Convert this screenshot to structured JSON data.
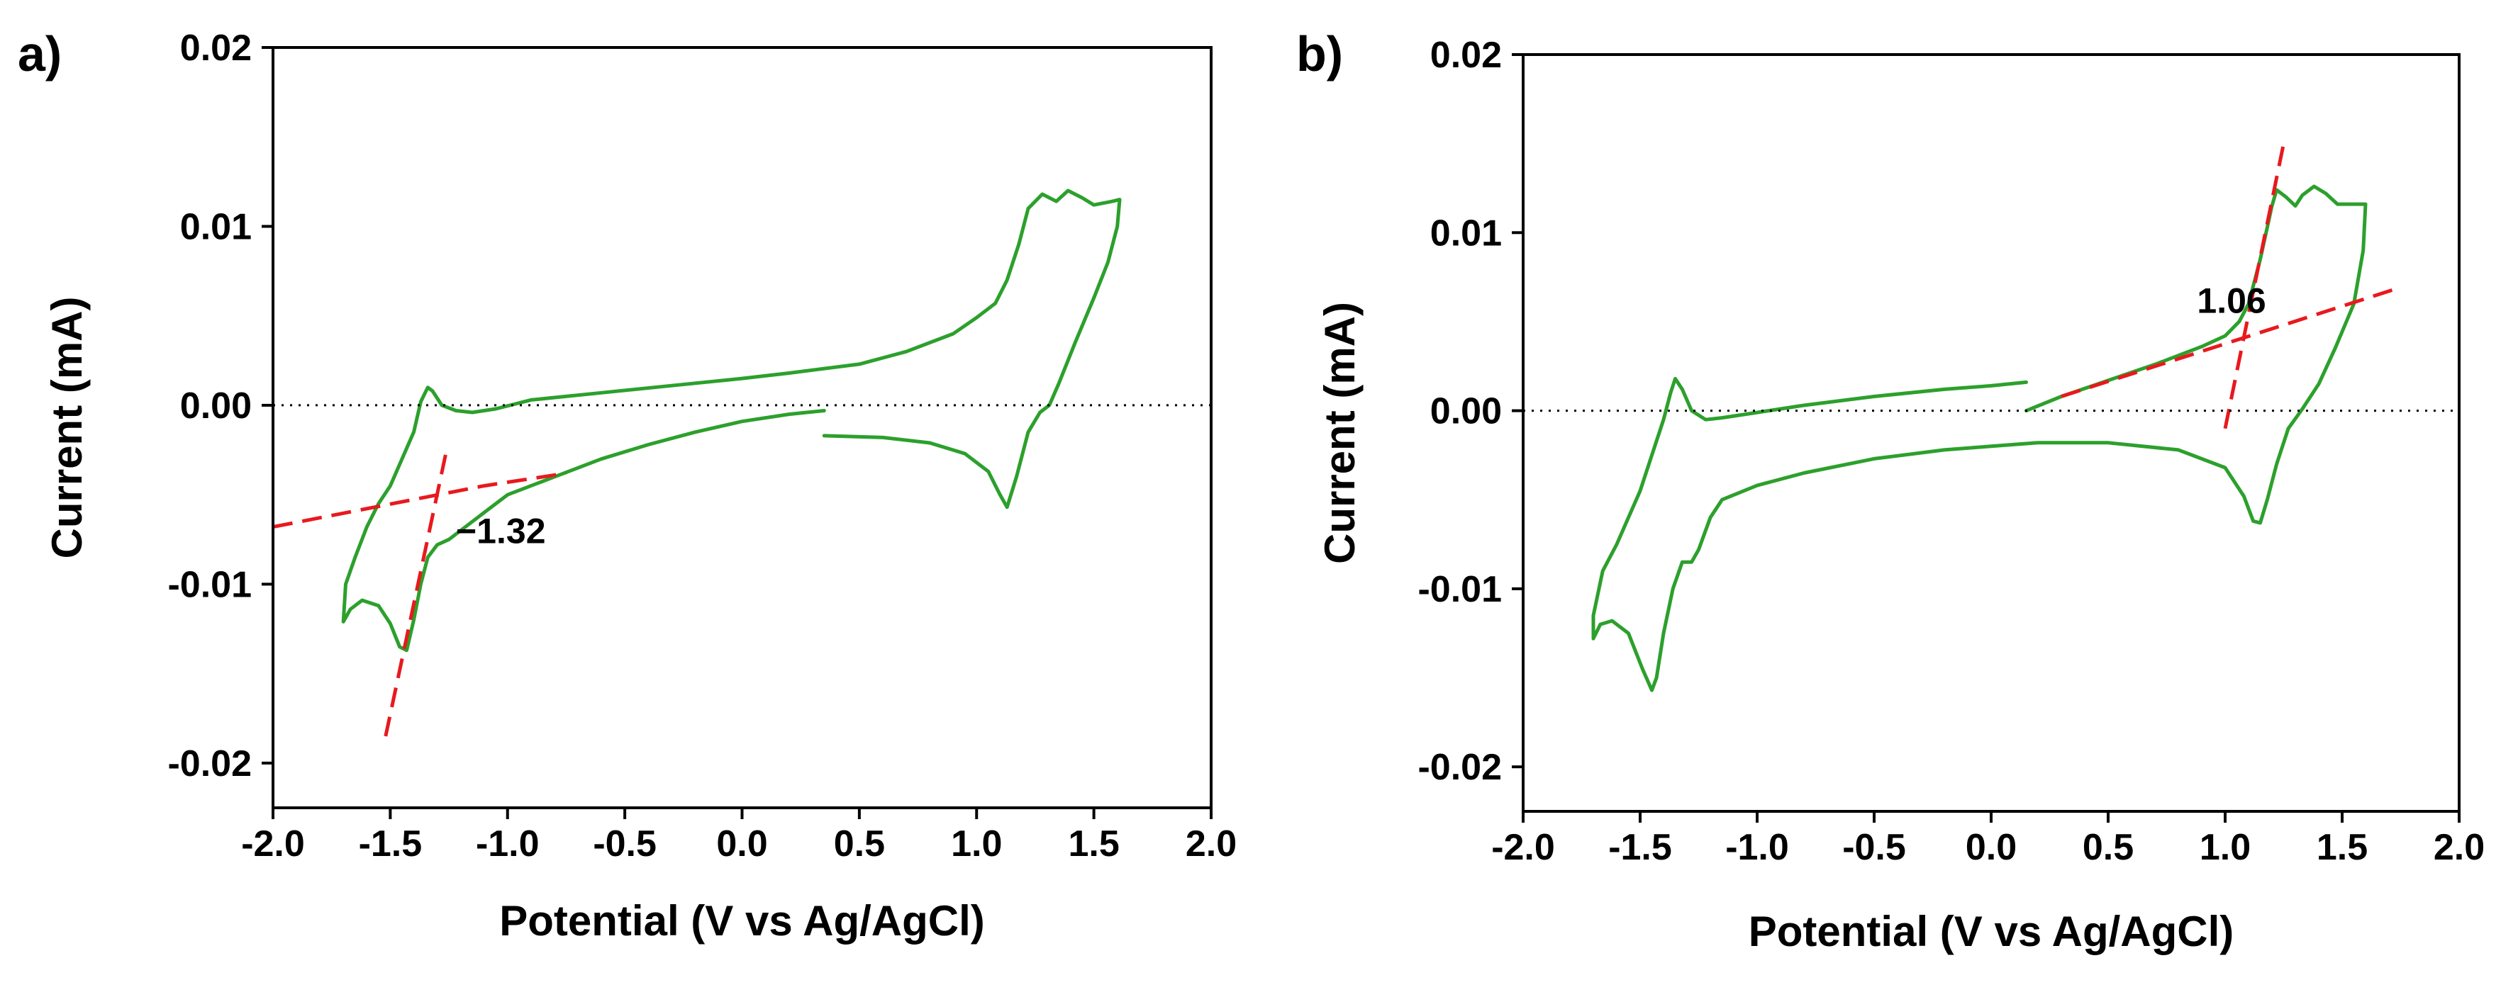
{
  "chart_data": [
    {
      "type": "line",
      "panel": "a)",
      "xlabel": "Potential (V vs Ag/AgCl)",
      "ylabel": "Current (mA)",
      "xlim": [
        -2.0,
        2.0
      ],
      "ylim": [
        -0.0225,
        0.02
      ],
      "xticks": [
        "-2.0",
        "-1.5",
        "-1.0",
        "-0.5",
        "0.0",
        "0.5",
        "1.0",
        "1.5",
        "2.0"
      ],
      "yticks": [
        "0.02",
        "0.01",
        "0.00",
        "-0.01",
        "-0.02"
      ],
      "ytick_values": [
        0.02,
        0.01,
        0.0,
        -0.01,
        -0.02
      ],
      "colors": {
        "curve": "#2ca02c",
        "tangent": "#e8191e",
        "zero_line": "#000000"
      },
      "annotation": {
        "text": "−1.32",
        "x": -1.22,
        "y": -0.0077
      },
      "series": [
        {
          "name": "CV",
          "style": "solid",
          "points": [
            [
              0.35,
              -0.0017
            ],
            [
              0.6,
              -0.0018
            ],
            [
              0.8,
              -0.0021
            ],
            [
              0.95,
              -0.0027
            ],
            [
              1.05,
              -0.0037
            ],
            [
              1.1,
              -0.005
            ],
            [
              1.13,
              -0.0057
            ],
            [
              1.17,
              -0.004
            ],
            [
              1.22,
              -0.0015
            ],
            [
              1.27,
              -0.0004
            ],
            [
              1.31,
              0.0
            ],
            [
              1.35,
              0.0012
            ],
            [
              1.42,
              0.0035
            ],
            [
              1.5,
              0.006
            ],
            [
              1.56,
              0.008
            ],
            [
              1.6,
              0.01
            ],
            [
              1.61,
              0.0115
            ],
            [
              1.58,
              0.0114
            ],
            [
              1.5,
              0.0112
            ],
            [
              1.45,
              0.0116
            ],
            [
              1.39,
              0.012
            ],
            [
              1.34,
              0.0114
            ],
            [
              1.28,
              0.0118
            ],
            [
              1.22,
              0.011
            ],
            [
              1.18,
              0.009
            ],
            [
              1.13,
              0.007
            ],
            [
              1.08,
              0.0057
            ],
            [
              1.0,
              0.0049
            ],
            [
              0.9,
              0.004
            ],
            [
              0.7,
              0.003
            ],
            [
              0.5,
              0.0023
            ],
            [
              0.2,
              0.0018
            ],
            [
              0.0,
              0.0015
            ],
            [
              -0.3,
              0.0011
            ],
            [
              -0.6,
              0.0007
            ],
            [
              -0.9,
              0.0003
            ],
            [
              -1.05,
              -0.0002
            ],
            [
              -1.15,
              -0.0004
            ],
            [
              -1.22,
              -0.0003
            ],
            [
              -1.28,
              0.0
            ],
            [
              -1.32,
              0.0008
            ],
            [
              -1.34,
              0.001
            ],
            [
              -1.37,
              0.0002
            ],
            [
              -1.4,
              -0.0015
            ],
            [
              -1.45,
              -0.003
            ],
            [
              -1.5,
              -0.0045
            ],
            [
              -1.55,
              -0.0055
            ],
            [
              -1.6,
              -0.0068
            ],
            [
              -1.65,
              -0.0085
            ],
            [
              -1.69,
              -0.01
            ],
            [
              -1.7,
              -0.0121
            ],
            [
              -1.67,
              -0.0114
            ],
            [
              -1.62,
              -0.0109
            ],
            [
              -1.55,
              -0.0112
            ],
            [
              -1.5,
              -0.0122
            ],
            [
              -1.46,
              -0.0135
            ],
            [
              -1.43,
              -0.0137
            ],
            [
              -1.4,
              -0.012
            ],
            [
              -1.37,
              -0.01
            ],
            [
              -1.34,
              -0.0085
            ],
            [
              -1.3,
              -0.0078
            ],
            [
              -1.25,
              -0.0075
            ],
            [
              -1.2,
              -0.007
            ],
            [
              -1.1,
              -0.006
            ],
            [
              -1.0,
              -0.005
            ],
            [
              -0.8,
              -0.004
            ],
            [
              -0.6,
              -0.003
            ],
            [
              -0.4,
              -0.0022
            ],
            [
              -0.2,
              -0.0015
            ],
            [
              0.0,
              -0.0009
            ],
            [
              0.2,
              -0.0005
            ],
            [
              0.35,
              -0.0003
            ]
          ]
        },
        {
          "name": "tangent 1",
          "style": "dashed",
          "points": [
            [
              -2.0,
              -0.0068
            ],
            [
              -1.1,
              -0.0045
            ],
            [
              -0.75,
              -0.0038
            ]
          ]
        },
        {
          "name": "tangent 2",
          "style": "dashed",
          "points": [
            [
              -1.52,
              -0.0185
            ],
            [
              -1.26,
              -0.0025
            ]
          ]
        },
        {
          "name": "zero",
          "style": "dotted",
          "points": [
            [
              -2.0,
              0.0
            ],
            [
              2.0,
              0.0
            ]
          ]
        }
      ]
    },
    {
      "type": "line",
      "panel": "b)",
      "xlabel": "Potential (V vs Ag/AgCl)",
      "ylabel": "Current (mA)",
      "xlim": [
        -2.0,
        2.0
      ],
      "ylim": [
        -0.0225,
        0.02
      ],
      "xticks": [
        "-2.0",
        "-1.5",
        "-1.0",
        "-0.5",
        "0.0",
        "0.5",
        "1.0",
        "1.5",
        "2.0"
      ],
      "yticks": [
        "0.02",
        "0.01",
        "0.00",
        "-0.01",
        "-0.02"
      ],
      "ytick_values": [
        0.02,
        0.01,
        0.0,
        -0.01,
        -0.02
      ],
      "colors": {
        "curve": "#2ca02c",
        "tangent": "#e8191e",
        "zero_line": "#000000"
      },
      "annotation": {
        "text": "1.06",
        "x": 0.88,
        "y": 0.0055
      },
      "series": [
        {
          "name": "CV",
          "style": "solid",
          "points": [
            [
              0.15,
              0.0
            ],
            [
              0.3,
              0.0008
            ],
            [
              0.5,
              0.0017
            ],
            [
              0.7,
              0.0026
            ],
            [
              0.9,
              0.0036
            ],
            [
              1.0,
              0.0042
            ],
            [
              1.06,
              0.005
            ],
            [
              1.1,
              0.006
            ],
            [
              1.15,
              0.0085
            ],
            [
              1.2,
              0.0115
            ],
            [
              1.22,
              0.0124
            ],
            [
              1.26,
              0.012
            ],
            [
              1.3,
              0.0115
            ],
            [
              1.33,
              0.0121
            ],
            [
              1.38,
              0.0126
            ],
            [
              1.43,
              0.0122
            ],
            [
              1.48,
              0.0116
            ],
            [
              1.55,
              0.0116
            ],
            [
              1.6,
              0.0116
            ],
            [
              1.59,
              0.009
            ],
            [
              1.55,
              0.006
            ],
            [
              1.47,
              0.0035
            ],
            [
              1.4,
              0.0015
            ],
            [
              1.33,
              0.0001
            ],
            [
              1.27,
              -0.001
            ],
            [
              1.22,
              -0.003
            ],
            [
              1.18,
              -0.005
            ],
            [
              1.15,
              -0.0063
            ],
            [
              1.12,
              -0.0062
            ],
            [
              1.08,
              -0.0048
            ],
            [
              1.0,
              -0.0032
            ],
            [
              0.8,
              -0.0022
            ],
            [
              0.5,
              -0.0018
            ],
            [
              0.2,
              -0.0018
            ],
            [
              0.0,
              -0.002
            ],
            [
              -0.2,
              -0.0022
            ],
            [
              -0.5,
              -0.0027
            ],
            [
              -0.8,
              -0.0035
            ],
            [
              -1.0,
              -0.0042
            ],
            [
              -1.15,
              -0.005
            ],
            [
              -1.2,
              -0.006
            ],
            [
              -1.25,
              -0.0078
            ],
            [
              -1.28,
              -0.0085
            ],
            [
              -1.32,
              -0.0085
            ],
            [
              -1.36,
              -0.01
            ],
            [
              -1.4,
              -0.0125
            ],
            [
              -1.43,
              -0.015
            ],
            [
              -1.45,
              -0.0157
            ],
            [
              -1.49,
              -0.0145
            ],
            [
              -1.55,
              -0.0125
            ],
            [
              -1.62,
              -0.0118
            ],
            [
              -1.67,
              -0.012
            ],
            [
              -1.7,
              -0.0128
            ],
            [
              -1.7,
              -0.0115
            ],
            [
              -1.66,
              -0.009
            ],
            [
              -1.6,
              -0.0075
            ],
            [
              -1.55,
              -0.006
            ],
            [
              -1.5,
              -0.0045
            ],
            [
              -1.45,
              -0.0025
            ],
            [
              -1.4,
              -0.0005
            ],
            [
              -1.37,
              0.001
            ],
            [
              -1.35,
              0.0018
            ],
            [
              -1.32,
              0.0012
            ],
            [
              -1.28,
              0.0
            ],
            [
              -1.22,
              -0.0005
            ],
            [
              -1.15,
              -0.0004
            ],
            [
              -1.0,
              -0.0001
            ],
            [
              -0.8,
              0.0003
            ],
            [
              -0.5,
              0.0008
            ],
            [
              -0.2,
              0.0012
            ],
            [
              0.0,
              0.0014
            ],
            [
              0.15,
              0.0016
            ]
          ]
        },
        {
          "name": "tangent 1",
          "style": "dashed",
          "points": [
            [
              0.3,
              0.0008
            ],
            [
              1.72,
              0.0068
            ]
          ]
        },
        {
          "name": "tangent 2",
          "style": "dashed",
          "points": [
            [
              1.0,
              -0.001
            ],
            [
              1.25,
              0.015
            ]
          ]
        },
        {
          "name": "zero",
          "style": "dotted",
          "points": [
            [
              -2.0,
              0.0
            ],
            [
              2.0,
              0.0
            ]
          ]
        }
      ]
    }
  ]
}
